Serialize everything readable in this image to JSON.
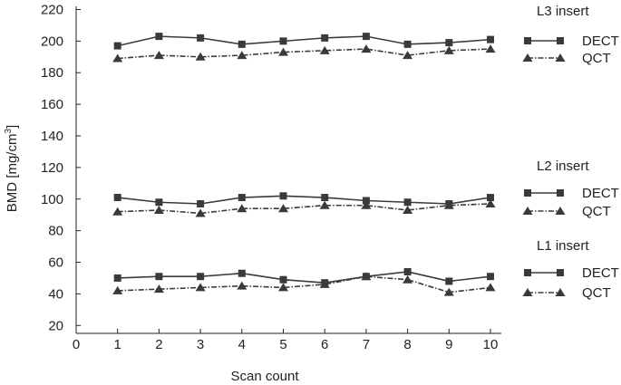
{
  "chart_data": {
    "type": "line",
    "xlabel": "Scan count",
    "ylabel_main": "BMD [mg/cm",
    "ylabel_sup": "3",
    "ylabel_end": "]",
    "xlim": [
      0,
      10
    ],
    "ylim": [
      15,
      222
    ],
    "x_ticks": [
      0,
      1,
      2,
      3,
      4,
      5,
      6,
      7,
      8,
      9,
      10
    ],
    "y_ticks": [
      20,
      40,
      60,
      80,
      100,
      120,
      140,
      160,
      180,
      200,
      220
    ],
    "x": [
      1,
      2,
      3,
      4,
      5,
      6,
      7,
      8,
      9,
      10
    ],
    "line_color": "#3a3a3a",
    "groups": [
      {
        "title": "L3 insert",
        "series": [
          {
            "name": "DECT",
            "marker": "square",
            "dash": "solid",
            "values": [
              197,
              203,
              202,
              198,
              200,
              202,
              203,
              198,
              199,
              201
            ]
          },
          {
            "name": "QCT",
            "marker": "triangle",
            "dash": "dashdot",
            "values": [
              189,
              191,
              190,
              191,
              193,
              194,
              195,
              191,
              194,
              195
            ]
          }
        ]
      },
      {
        "title": "L2 insert",
        "series": [
          {
            "name": "DECT",
            "marker": "square",
            "dash": "solid",
            "values": [
              101,
              98,
              97,
              101,
              102,
              101,
              99,
              98,
              97,
              101
            ]
          },
          {
            "name": "QCT",
            "marker": "triangle",
            "dash": "dashdot",
            "values": [
              92,
              93,
              91,
              94,
              94,
              96,
              96,
              93,
              96,
              97
            ]
          }
        ]
      },
      {
        "title": "L1 insert",
        "series": [
          {
            "name": "DECT",
            "marker": "square",
            "dash": "solid",
            "values": [
              50,
              51,
              51,
              53,
              49,
              47,
              51,
              54,
              48,
              51
            ]
          },
          {
            "name": "QCT",
            "marker": "triangle",
            "dash": "dashdot",
            "values": [
              42,
              43,
              44,
              45,
              44,
              46,
              51,
              49,
              41,
              44
            ]
          }
        ]
      }
    ]
  }
}
